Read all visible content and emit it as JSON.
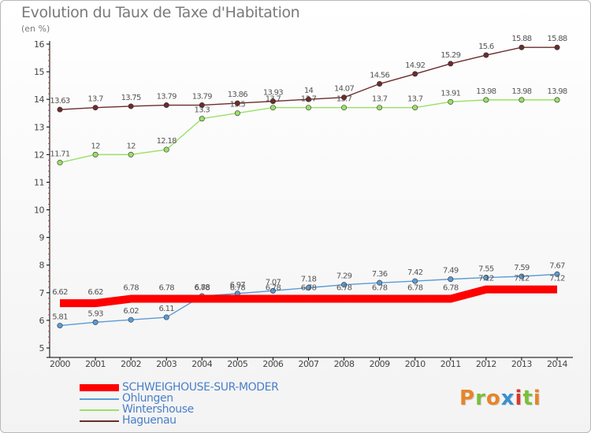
{
  "header": {
    "title": "Evolution du Taux de Taxe d'Habitation",
    "unit": "(en %)"
  },
  "brand": {
    "text": "Proxiti",
    "letter_colors": [
      "#e8842a",
      "#7abf3a",
      "#e8842a",
      "#3a8fd0",
      "#d63a2a",
      "#7abf3a",
      "#e8842a"
    ]
  },
  "chart_data": {
    "type": "line",
    "title": "Evolution du Taux de Taxe d'Habitation",
    "subtitle": "(en %)",
    "xlabel": "",
    "ylabel": "",
    "ylim": [
      5,
      16
    ],
    "yticks": [
      "5",
      "6",
      "7",
      "8",
      "9",
      "10",
      "11",
      "12",
      "13",
      "14",
      "15",
      "16"
    ],
    "grid": false,
    "legend_position": "bottom-left",
    "categories": [
      "2000",
      "2001",
      "2002",
      "2003",
      "2004",
      "2005",
      "2006",
      "2007",
      "2008",
      "2009",
      "2010",
      "2011",
      "2012",
      "2013",
      "2014"
    ],
    "series": [
      {
        "name": "SCHWEIGHOUSE-SUR-MODER",
        "color": "#ff0000",
        "values": [
          6.62,
          6.62,
          6.78,
          6.78,
          6.78,
          6.78,
          6.78,
          6.78,
          6.78,
          6.78,
          6.78,
          6.78,
          7.12,
          7.12,
          7.12
        ],
        "labels": [
          "6.62",
          "6.62",
          "6.78",
          "6.78",
          "6.78",
          "6.78",
          "6.78",
          "6.78",
          "6.78",
          "6.78",
          "6.78",
          "6.78",
          "7.12",
          "7.12",
          "7.12"
        ]
      },
      {
        "name": "Ohlungen",
        "color": "#5b9bd5",
        "values": [
          5.81,
          5.93,
          6.02,
          6.11,
          6.88,
          6.97,
          7.07,
          7.18,
          7.29,
          7.36,
          7.42,
          7.49,
          7.55,
          7.59,
          7.67
        ],
        "labels": [
          "5.81",
          "5.93",
          "6.02",
          "6.11",
          "6.88",
          "6.97",
          "7.07",
          "7.18",
          "7.29",
          "7.36",
          "7.42",
          "7.49",
          "7.55",
          "7.59",
          "7.67"
        ]
      },
      {
        "name": "Wintershouse",
        "color": "#99e066",
        "values": [
          11.71,
          12,
          12,
          12.18,
          13.3,
          13.5,
          13.7,
          13.7,
          13.7,
          13.7,
          13.7,
          13.91,
          13.98,
          13.98,
          13.98
        ],
        "labels": [
          "11.71",
          "12",
          "12",
          "12.18",
          "13.3",
          "13.5",
          "13.7",
          "13.7",
          "13.7",
          "13.7",
          "13.7",
          "13.91",
          "13.98",
          "13.98",
          "13.98"
        ]
      },
      {
        "name": "Haguenau",
        "color": "#6b2c2c",
        "values": [
          13.63,
          13.7,
          13.75,
          13.79,
          13.79,
          13.86,
          13.93,
          14,
          14.07,
          14.56,
          14.92,
          15.29,
          15.6,
          15.88,
          15.88
        ],
        "labels": [
          "13.63",
          "13.7",
          "13.75",
          "13.79",
          "13.79",
          "13.86",
          "13.93",
          "14",
          "14.07",
          "14.56",
          "14.92",
          "15.29",
          "15.6",
          "15.88",
          "15.88"
        ]
      }
    ]
  },
  "legend": {
    "items": [
      {
        "label": "SCHWEIGHOUSE-SUR-MODER",
        "color": "#ff0000"
      },
      {
        "label": "Ohlungen",
        "color": "#5b9bd5"
      },
      {
        "label": "Wintershouse",
        "color": "#99e066"
      },
      {
        "label": "Haguenau",
        "color": "#6b2c2c"
      }
    ]
  }
}
